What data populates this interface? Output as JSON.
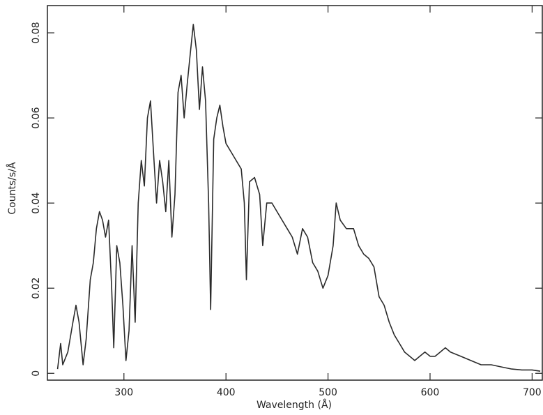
{
  "chart_data": {
    "type": "line",
    "x_label": "Wavelength (Å)",
    "y_label": "Counts/s/Å",
    "x": [
      235,
      238,
      240,
      245,
      250,
      253,
      256,
      260,
      263,
      267,
      270,
      273,
      276,
      279,
      282,
      285,
      288,
      290,
      293,
      296,
      299,
      302,
      305,
      308,
      311,
      314,
      317,
      320,
      323,
      326,
      329,
      332,
      335,
      338,
      341,
      344,
      347,
      350,
      353,
      356,
      359,
      362,
      365,
      368,
      371,
      374,
      377,
      380,
      383,
      385,
      388,
      391,
      394,
      397,
      400,
      405,
      410,
      415,
      418,
      420,
      423,
      428,
      433,
      436,
      440,
      445,
      450,
      455,
      460,
      465,
      470,
      475,
      480,
      485,
      490,
      495,
      500,
      505,
      508,
      512,
      518,
      525,
      530,
      535,
      540,
      545,
      550,
      555,
      560,
      565,
      570,
      575,
      580,
      585,
      590,
      595,
      600,
      605,
      610,
      615,
      620,
      630,
      640,
      650,
      660,
      670,
      680,
      690,
      700,
      708
    ],
    "values": [
      0.001,
      0.007,
      0.002,
      0.005,
      0.012,
      0.016,
      0.012,
      0.002,
      0.008,
      0.022,
      0.026,
      0.034,
      0.038,
      0.036,
      0.032,
      0.036,
      0.02,
      0.006,
      0.03,
      0.026,
      0.016,
      0.003,
      0.01,
      0.03,
      0.012,
      0.04,
      0.05,
      0.044,
      0.06,
      0.064,
      0.052,
      0.04,
      0.05,
      0.045,
      0.038,
      0.05,
      0.032,
      0.042,
      0.066,
      0.07,
      0.06,
      0.068,
      0.075,
      0.082,
      0.076,
      0.062,
      0.072,
      0.064,
      0.04,
      0.015,
      0.055,
      0.06,
      0.063,
      0.058,
      0.054,
      0.052,
      0.05,
      0.048,
      0.04,
      0.022,
      0.045,
      0.046,
      0.042,
      0.03,
      0.04,
      0.04,
      0.038,
      0.036,
      0.034,
      0.032,
      0.028,
      0.034,
      0.032,
      0.026,
      0.024,
      0.02,
      0.023,
      0.03,
      0.04,
      0.036,
      0.034,
      0.034,
      0.03,
      0.028,
      0.027,
      0.025,
      0.018,
      0.016,
      0.012,
      0.009,
      0.007,
      0.005,
      0.004,
      0.003,
      0.004,
      0.005,
      0.004,
      0.004,
      0.005,
      0.006,
      0.005,
      0.004,
      0.003,
      0.002,
      0.002,
      0.0015,
      0.001,
      0.0008,
      0.0008,
      0.0005
    ],
    "color": "#2a2a2a",
    "xlim": [
      225,
      710
    ],
    "ylim": [
      -0.0016,
      0.0864
    ],
    "xticks": [
      300,
      400,
      500,
      600,
      700
    ],
    "yticks": [
      0,
      0.02,
      0.04,
      0.06,
      0.08
    ]
  }
}
